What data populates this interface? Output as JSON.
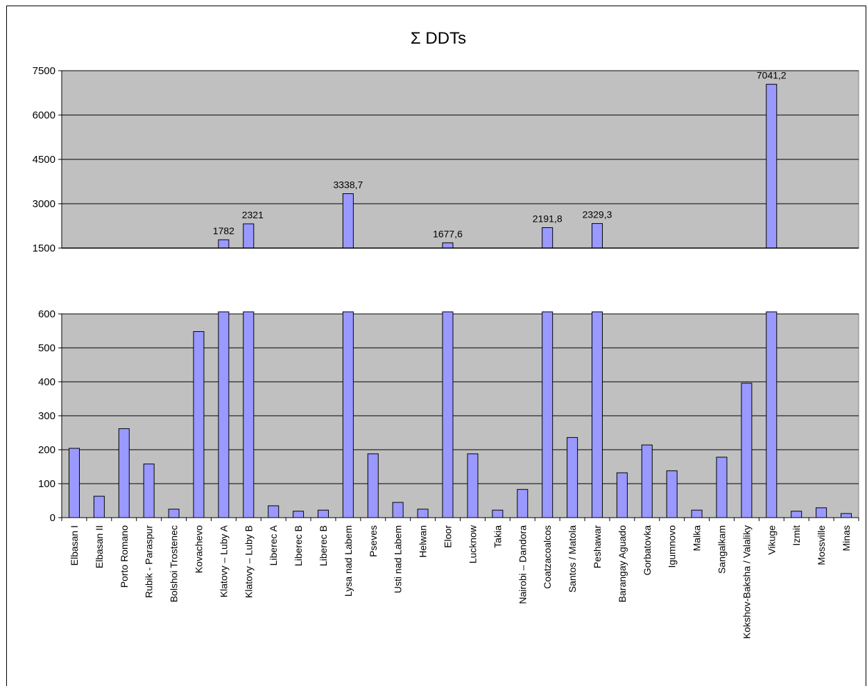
{
  "chart_data": {
    "type": "bar",
    "title": "Σ DDTs",
    "categories": [
      "Elbasan I",
      "Elbasan II",
      "Porto Romano",
      "Rubik - Paraspur",
      "Bolshoi Trostenec",
      "Kovachevo",
      "Klatovy – Luby A",
      "Klatovy – Luby B",
      "Liberec A",
      "Liberec B",
      "Liberec B",
      "Lysa nad Labem",
      "Pseves",
      "Usti nad Labem",
      "Helwan",
      "Eloor",
      "Lucknow",
      "Takia",
      "Nairobi – Dandora",
      "Coatzacoalcos",
      "Santos / Matola",
      "Peshawar",
      "Barangay Aguado",
      "Gorbatovka",
      "Igumnovo",
      "Malka",
      "Sangalkam",
      "Kokshov-Baksha  /  Valaliky",
      "Vikuge",
      "Izmit",
      "Mossville",
      "Minas"
    ],
    "values": [
      204,
      63,
      262,
      158,
      25,
      548,
      1782,
      2321,
      35,
      19,
      22,
      3338.7,
      188,
      45,
      25,
      1677.6,
      188,
      22,
      83,
      2191.8,
      236,
      2329.3,
      132,
      214,
      138,
      22,
      178,
      396,
      7041.2,
      19,
      29,
      12
    ],
    "data_labels": [
      {
        "category_index": 6,
        "text": "1782"
      },
      {
        "category_index": 7,
        "text": "2321"
      },
      {
        "category_index": 11,
        "text": "3338,7"
      },
      {
        "category_index": 15,
        "text": "1677,6"
      },
      {
        "category_index": 19,
        "text": "2191,8"
      },
      {
        "category_index": 21,
        "text": "2329,3"
      },
      {
        "category_index": 28,
        "text": "7041,2"
      }
    ],
    "panels": [
      {
        "name": "upper",
        "ylim": [
          1500,
          7500
        ],
        "yticks": [
          1500,
          3000,
          4500,
          6000,
          7500
        ]
      },
      {
        "name": "lower",
        "ylim": [
          0,
          600
        ],
        "yticks": [
          0,
          100,
          200,
          300,
          400,
          500,
          600
        ]
      }
    ],
    "colors": {
      "bar": "#9999ff",
      "plot_bg": "#c0c0c0",
      "grid": "#000000"
    },
    "grid": true,
    "legend": "none"
  }
}
